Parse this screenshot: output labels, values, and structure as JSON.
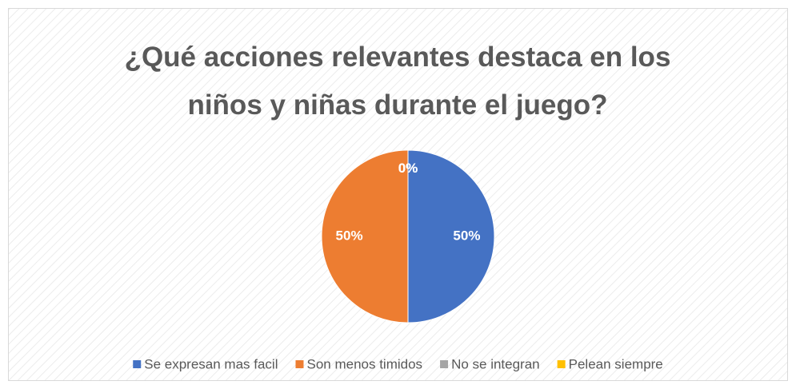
{
  "chart_data": {
    "type": "pie",
    "title": "¿Qué acciones relevantes destaca en los niños y niñas durante el juego?",
    "categories": [
      "Se expresan mas facil",
      "Son menos timidos",
      "No se integran",
      "Pelean siempre"
    ],
    "values": [
      50,
      50,
      0,
      0
    ],
    "value_labels": [
      "50%",
      "50%",
      "0%",
      "0%"
    ],
    "colors": [
      "#4472c4",
      "#ed7d31",
      "#a5a5a5",
      "#ffc000"
    ],
    "legend": "bottom"
  }
}
